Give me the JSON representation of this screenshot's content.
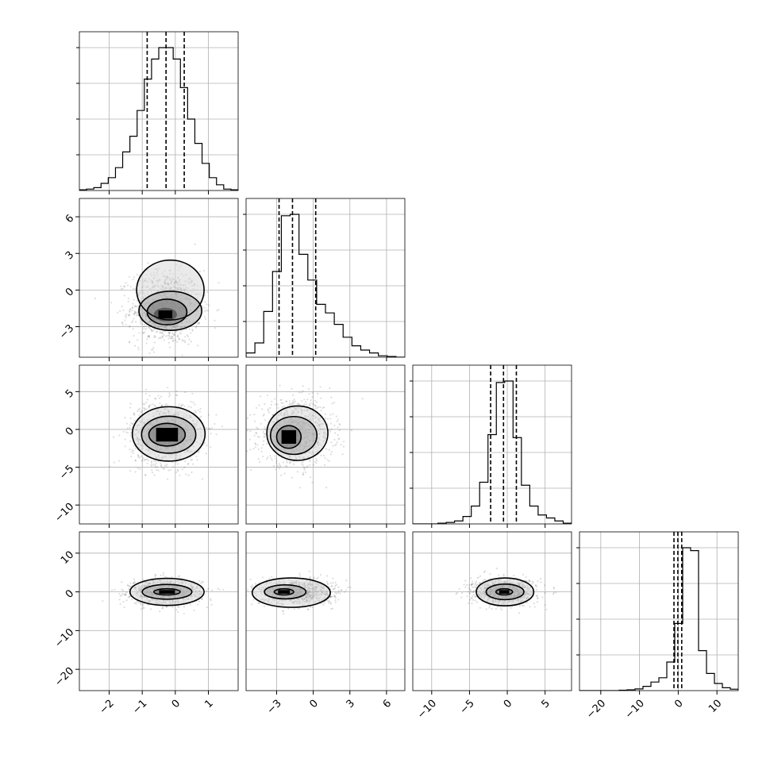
{
  "chart_data": {
    "type": "corner",
    "title": "",
    "grid": true,
    "parameters": [
      {
        "index": 0,
        "range": [
          -2.9,
          1.9
        ],
        "ticks": [
          -2,
          -1,
          0,
          1
        ],
        "tick_labels": [
          "−2",
          "−1",
          "0",
          "1"
        ],
        "quantiles": [
          -0.85,
          -0.28,
          0.27
        ],
        "mean": -0.28,
        "std": 0.53
      },
      {
        "index": 1,
        "range": [
          -5.5,
          7.5
        ],
        "ticks": [
          -3,
          0,
          3,
          6
        ],
        "tick_labels": [
          "−3",
          "0",
          "3",
          "6"
        ],
        "quantiles": [
          -2.8,
          -1.7,
          0.2
        ],
        "mean": -1.4,
        "std": 1.5
      },
      {
        "index": 2,
        "range": [
          -12.5,
          8.5
        ],
        "ticks": [
          -10,
          -5,
          0,
          5
        ],
        "tick_labels": [
          "−10",
          "−5",
          "0",
          "5"
        ],
        "quantiles": [
          -2.2,
          -0.5,
          1.2
        ],
        "mean": -0.5,
        "std": 2.1
      },
      {
        "index": 3,
        "range": [
          -25.5,
          15.5
        ],
        "ticks": [
          -20,
          -10,
          0,
          10
        ],
        "tick_labels": [
          "−20",
          "−10",
          "0",
          "10"
        ],
        "quantiles": [
          -1.1,
          -0.1,
          0.9
        ],
        "mean": 0.0,
        "std": 1.6
      }
    ],
    "histograms": [
      {
        "param": 0,
        "edges_range": [
          -2.9,
          1.9
        ],
        "counts": [
          0.005,
          0.01,
          0.02,
          0.05,
          0.09,
          0.16,
          0.27,
          0.38,
          0.56,
          0.78,
          0.92,
          1.0,
          1.0,
          0.92,
          0.72,
          0.5,
          0.33,
          0.19,
          0.09,
          0.04,
          0.01,
          0.005
        ]
      },
      {
        "param": 1,
        "edges_range": [
          -5.5,
          7.5
        ],
        "counts": [
          0.03,
          0.1,
          0.32,
          0.6,
          0.99,
          1.0,
          0.72,
          0.54,
          0.37,
          0.31,
          0.23,
          0.14,
          0.08,
          0.05,
          0.03,
          0.01,
          0.005,
          0.0
        ]
      },
      {
        "param": 2,
        "edges_range": [
          -12.5,
          8.5
        ],
        "counts": [
          0.0,
          0.0,
          0.0,
          0.005,
          0.01,
          0.02,
          0.05,
          0.12,
          0.28,
          0.6,
          0.95,
          0.96,
          0.58,
          0.26,
          0.12,
          0.06,
          0.04,
          0.02,
          0.005
        ]
      },
      {
        "param": 3,
        "edges_range": [
          -25.5,
          15.5
        ],
        "counts": [
          0.0,
          0.0,
          0.0,
          0.0,
          0.0,
          0.003,
          0.006,
          0.012,
          0.03,
          0.06,
          0.09,
          0.2,
          0.47,
          1.0,
          0.98,
          0.28,
          0.12,
          0.05,
          0.02,
          0.01
        ]
      }
    ],
    "contours": [
      {
        "x": 0,
        "y": 1,
        "levels": [
          {
            "cx": -0.15,
            "cy": 0.0,
            "rx": 1.02,
            "ry": 2.45
          },
          {
            "cx": -0.15,
            "cy": -1.7,
            "rx": 0.95,
            "ry": 1.6
          },
          {
            "cx": -0.25,
            "cy": -1.8,
            "rx": 0.6,
            "ry": 1.05
          },
          {
            "cx": -0.3,
            "cy": -2.0,
            "rx": 0.35,
            "ry": 0.55
          }
        ]
      },
      {
        "x": 0,
        "y": 2,
        "levels": [
          {
            "cx": -0.2,
            "cy": -0.6,
            "rx": 1.1,
            "ry": 3.6
          },
          {
            "cx": -0.2,
            "cy": -0.7,
            "rx": 0.82,
            "ry": 2.45
          },
          {
            "cx": -0.25,
            "cy": -0.7,
            "rx": 0.55,
            "ry": 1.5
          }
        ]
      },
      {
        "x": 0,
        "y": 3,
        "levels": [
          {
            "cx": -0.25,
            "cy": 0.0,
            "rx": 1.12,
            "ry": 3.5
          },
          {
            "cx": -0.25,
            "cy": 0.0,
            "rx": 0.75,
            "ry": 1.9
          },
          {
            "cx": -0.25,
            "cy": 0.0,
            "rx": 0.4,
            "ry": 0.8
          }
        ]
      },
      {
        "x": 1,
        "y": 2,
        "levels": [
          {
            "cx": -1.3,
            "cy": -0.5,
            "rx": 2.5,
            "ry": 3.6
          },
          {
            "cx": -1.6,
            "cy": -0.8,
            "rx": 1.9,
            "ry": 2.5
          },
          {
            "cx": -2.0,
            "cy": -1.0,
            "rx": 1.0,
            "ry": 1.5
          }
        ]
      },
      {
        "x": 1,
        "y": 3,
        "levels": [
          {
            "cx": -1.8,
            "cy": -0.2,
            "rx": 3.2,
            "ry": 3.8
          },
          {
            "cx": -2.3,
            "cy": 0.0,
            "rx": 1.7,
            "ry": 1.8
          },
          {
            "cx": -2.4,
            "cy": 0.0,
            "rx": 0.8,
            "ry": 0.8
          }
        ]
      },
      {
        "x": 2,
        "y": 3,
        "levels": [
          {
            "cx": -0.3,
            "cy": 0.0,
            "rx": 3.8,
            "ry": 3.6
          },
          {
            "cx": -0.3,
            "cy": 0.0,
            "rx": 2.5,
            "ry": 2.0
          },
          {
            "cx": -0.4,
            "cy": 0.0,
            "rx": 1.1,
            "ry": 0.8
          }
        ]
      }
    ]
  }
}
